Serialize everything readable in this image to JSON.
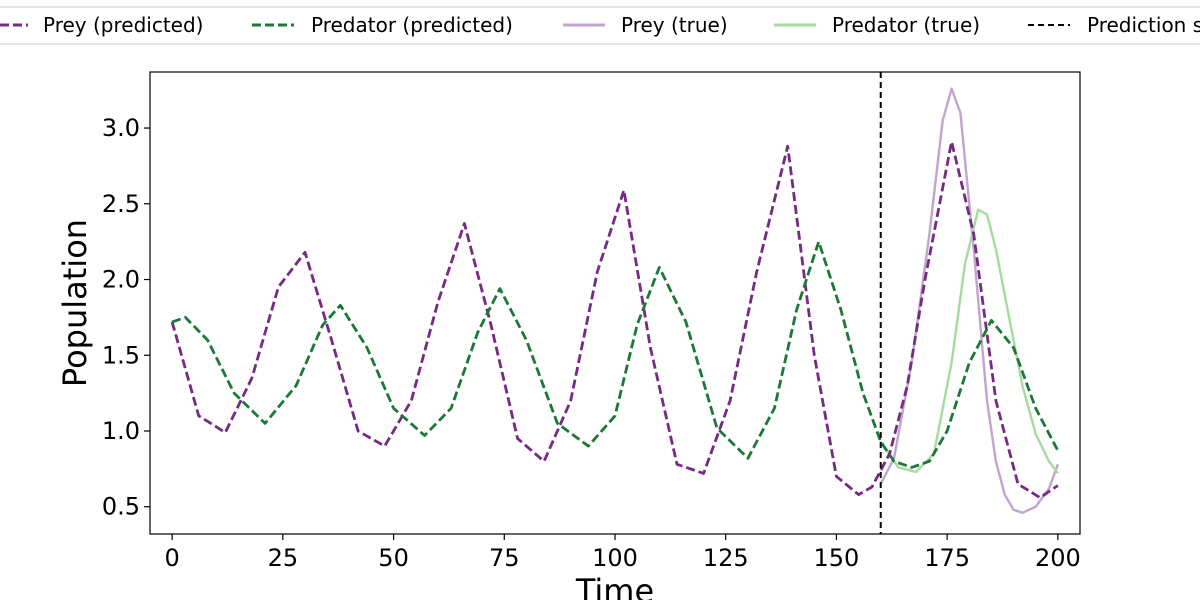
{
  "chart_data": {
    "type": "line",
    "title": "",
    "xlabel": "Time",
    "ylabel": "Population",
    "xlim": [
      -5,
      205
    ],
    "ylim": [
      0.32,
      3.37
    ],
    "xticks": [
      0,
      25,
      50,
      75,
      100,
      125,
      150,
      175,
      200
    ],
    "yticks": [
      0.5,
      1.0,
      1.5,
      2.0,
      2.5,
      3.0
    ],
    "xtick_labels": [
      "0",
      "25",
      "50",
      "75",
      "100",
      "125",
      "150",
      "175",
      "200"
    ],
    "ytick_labels": [
      "0.5",
      "1.0",
      "1.5",
      "2.0",
      "2.5",
      "3.0"
    ],
    "grid": false,
    "legend_placement": "top-center, above plot",
    "prediction_start": {
      "label": "Prediction s",
      "x": 160,
      "color": "#000000"
    },
    "series": [
      {
        "name": "Prey (predicted)",
        "style": "dashed",
        "color": "#762a83",
        "x": [
          0,
          6,
          12,
          18,
          24,
          30,
          36,
          42,
          48,
          54,
          60,
          66,
          72,
          78,
          84,
          90,
          96,
          102,
          108,
          114,
          120,
          126,
          132,
          139,
          145,
          150,
          155,
          158,
          162,
          166,
          170,
          176,
          181,
          186,
          191,
          196,
          200
        ],
        "y": [
          1.72,
          1.1,
          0.99,
          1.35,
          1.95,
          2.18,
          1.6,
          1.0,
          0.9,
          1.2,
          1.85,
          2.37,
          1.7,
          0.95,
          0.8,
          1.2,
          2.05,
          2.59,
          1.55,
          0.78,
          0.72,
          1.2,
          2.05,
          2.88,
          1.5,
          0.7,
          0.58,
          0.63,
          0.85,
          1.3,
          2.0,
          2.91,
          2.3,
          1.2,
          0.65,
          0.56,
          0.64
        ]
      },
      {
        "name": "Predator (predicted)",
        "style": "dashed",
        "color": "#1b7837",
        "x": [
          0,
          3,
          8,
          14,
          21,
          28,
          34,
          38,
          44,
          50,
          57,
          63,
          69,
          74,
          80,
          87,
          94,
          100,
          105,
          110,
          116,
          123,
          130,
          136,
          141,
          146,
          151,
          156,
          160,
          163,
          167,
          171,
          175,
          180,
          185,
          190,
          195,
          200
        ],
        "y": [
          1.72,
          1.75,
          1.6,
          1.25,
          1.05,
          1.3,
          1.7,
          1.83,
          1.55,
          1.15,
          0.97,
          1.15,
          1.65,
          1.94,
          1.6,
          1.05,
          0.9,
          1.1,
          1.7,
          2.08,
          1.72,
          1.02,
          0.82,
          1.15,
          1.8,
          2.25,
          1.8,
          1.25,
          0.93,
          0.8,
          0.76,
          0.8,
          1.0,
          1.45,
          1.73,
          1.55,
          1.15,
          0.87
        ]
      },
      {
        "name": "Prey (true)",
        "style": "solid",
        "color": "#c2a5cf",
        "x": [
          160,
          163,
          167,
          171,
          174,
          176,
          178,
          181,
          184,
          186,
          188,
          190,
          192,
          195,
          198,
          200
        ],
        "y": [
          0.65,
          0.82,
          1.45,
          2.3,
          3.05,
          3.26,
          3.1,
          2.2,
          1.2,
          0.8,
          0.58,
          0.48,
          0.46,
          0.5,
          0.62,
          0.78
        ]
      },
      {
        "name": "Predator (true)",
        "style": "solid",
        "color": "#a6dba0",
        "x": [
          160,
          164,
          168,
          172,
          176,
          179,
          182,
          184,
          186,
          189,
          192,
          195,
          198,
          200
        ],
        "y": [
          0.93,
          0.76,
          0.73,
          0.85,
          1.45,
          2.1,
          2.46,
          2.43,
          2.2,
          1.75,
          1.3,
          0.98,
          0.8,
          0.72
        ]
      }
    ]
  }
}
